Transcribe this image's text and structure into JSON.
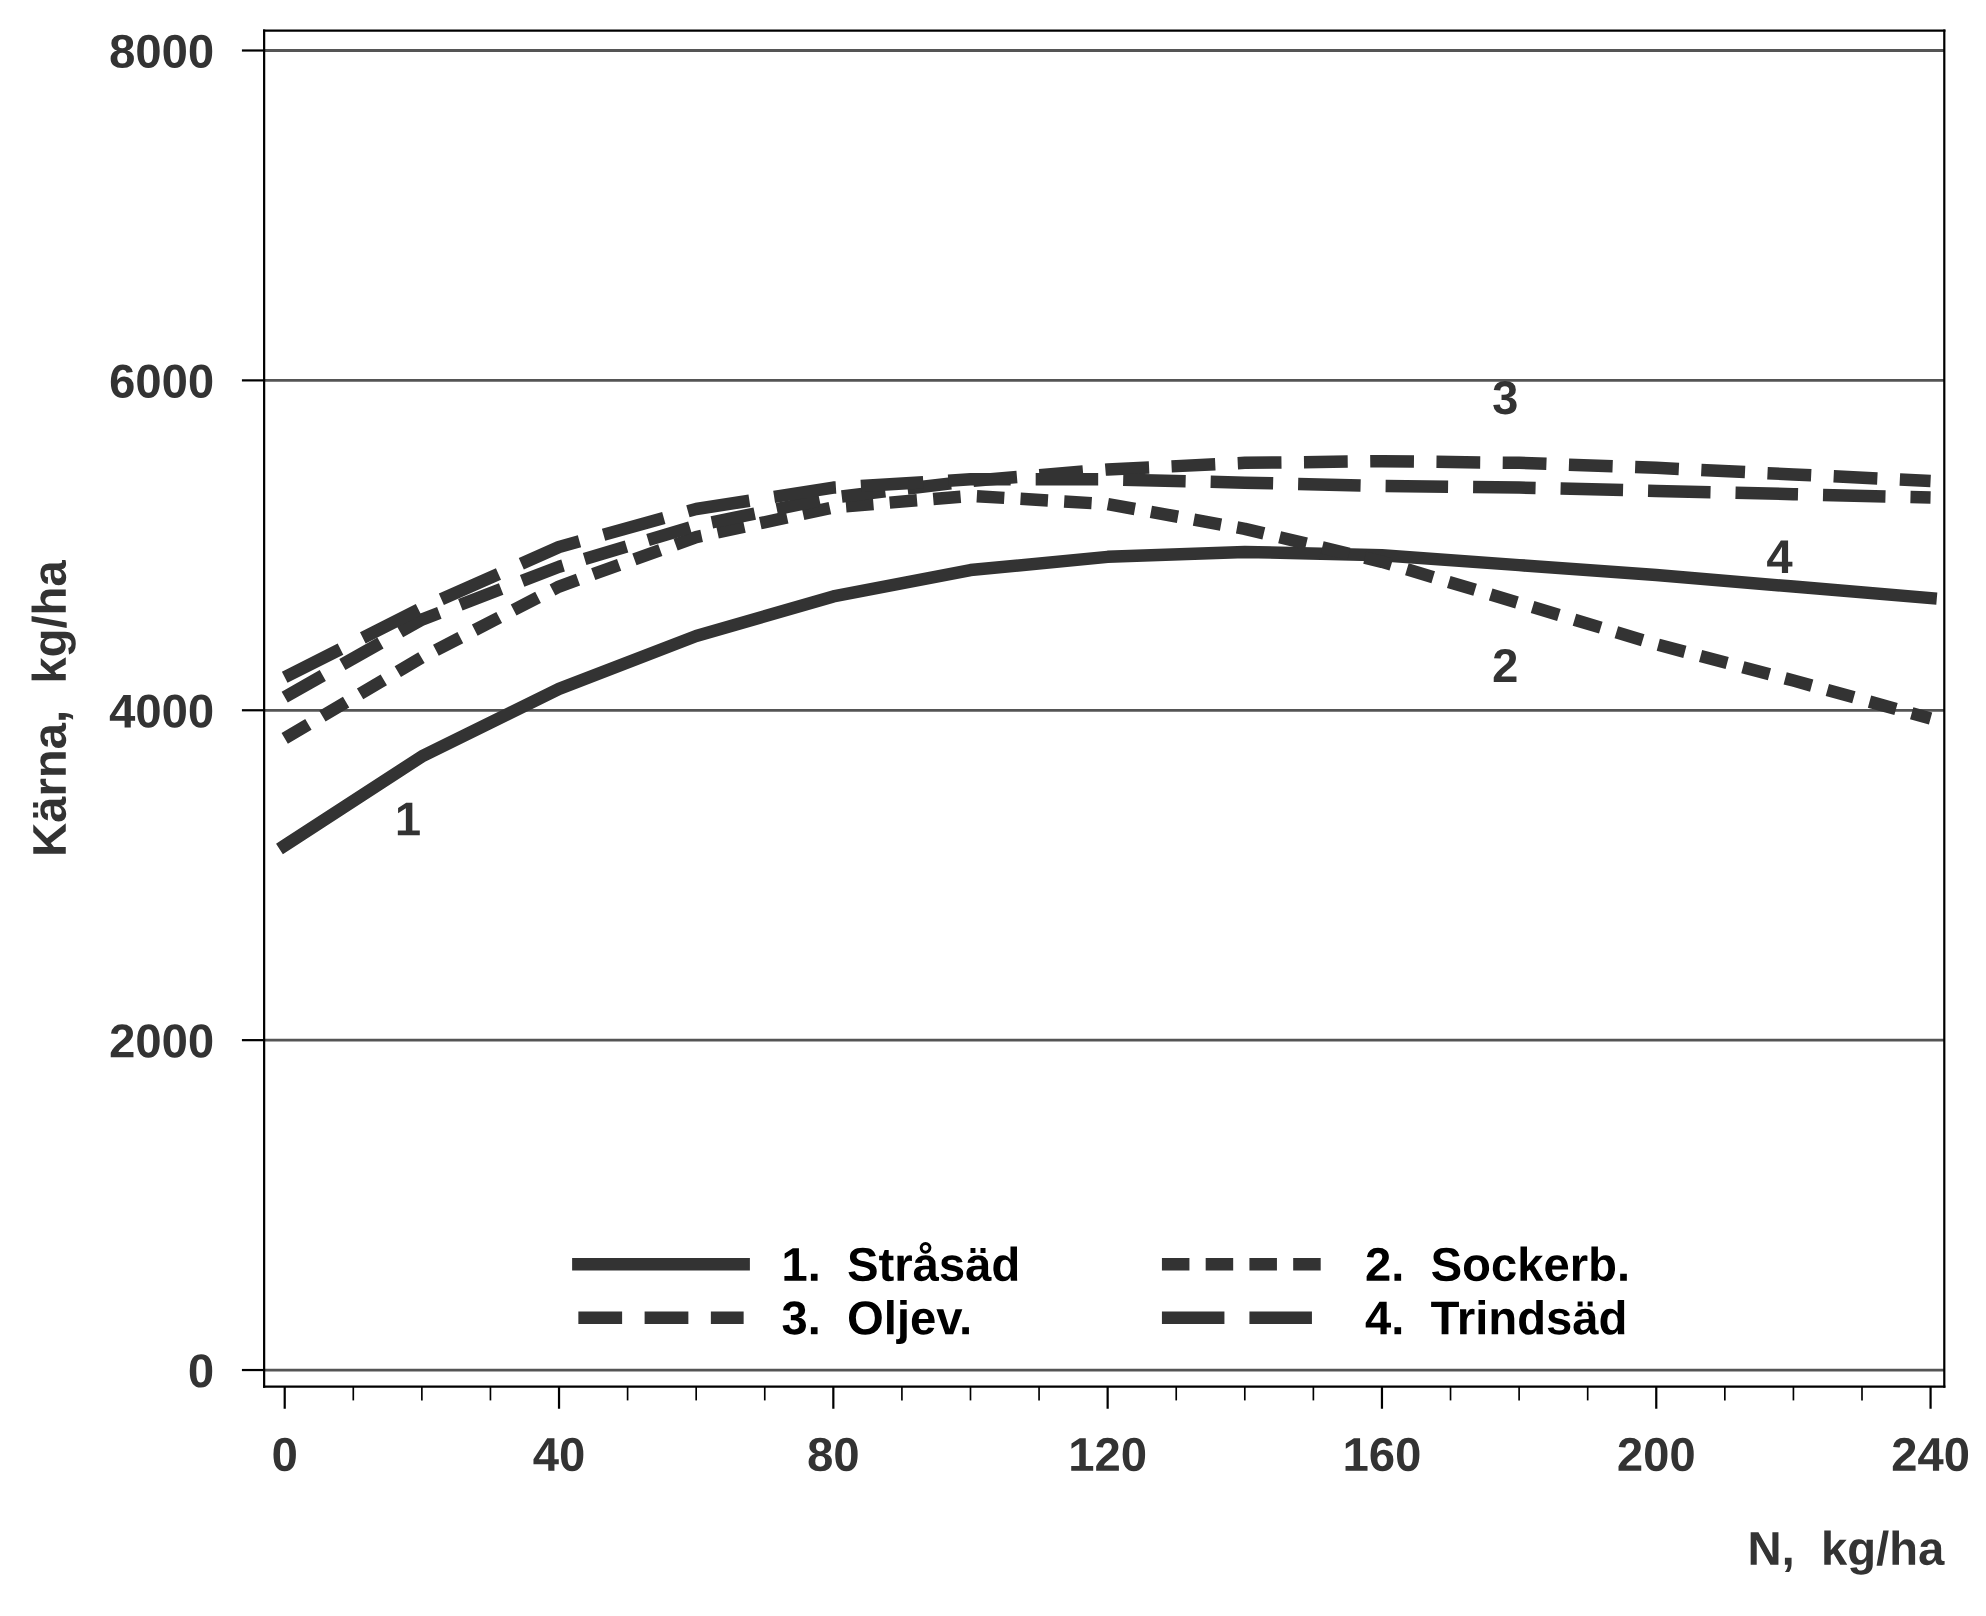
{
  "chart_data": {
    "type": "line",
    "xlabel": "N,  kg/ha",
    "ylabel": "Kärna,  kg/ha",
    "x": [
      0,
      20,
      40,
      60,
      80,
      100,
      120,
      140,
      160,
      180,
      200,
      220,
      240
    ],
    "series": [
      {
        "name": "1.  Stråsäd",
        "color": "#333333",
        "line_style": "solid",
        "values": [
          3180,
          3720,
          4130,
          4450,
          4690,
          4850,
          4930,
          4960,
          4940,
          4880,
          4820,
          4750,
          4680
        ]
      },
      {
        "name": "2.  Sockerb.",
        "color": "#333333",
        "line_style": "dotted",
        "values": [
          3830,
          4320,
          4750,
          5050,
          5230,
          5300,
          5250,
          5100,
          4900,
          4650,
          4400,
          4180,
          3950
        ]
      },
      {
        "name": "3.  Oljev.",
        "color": "#333333",
        "line_style": "dashed",
        "values": [
          4080,
          4550,
          4870,
          5120,
          5290,
          5390,
          5460,
          5500,
          5510,
          5500,
          5470,
          5430,
          5390
        ]
      },
      {
        "name": "4.  Trindsäd",
        "color": "#333333",
        "line_style": "dashed",
        "values": [
          4200,
          4620,
          4990,
          5220,
          5350,
          5400,
          5400,
          5380,
          5360,
          5350,
          5330,
          5310,
          5290
        ]
      }
    ],
    "annotations": [
      {
        "text": "1",
        "x": 20,
        "y": 3720
      },
      {
        "text": "2",
        "x": 180,
        "y": 4650
      },
      {
        "text": "3",
        "x": 180,
        "y": 5500
      },
      {
        "text": "4",
        "x": 220,
        "y": 5310
      }
    ],
    "xlim": [
      -3,
      242
    ],
    "xticks": [
      0,
      40,
      80,
      120,
      160,
      200,
      240
    ],
    "ylim": [
      -100,
      8120
    ],
    "yticks": [
      0,
      2000,
      4000,
      6000,
      8000
    ],
    "grid": "y",
    "legend": "bottom",
    "marker": "none"
  }
}
